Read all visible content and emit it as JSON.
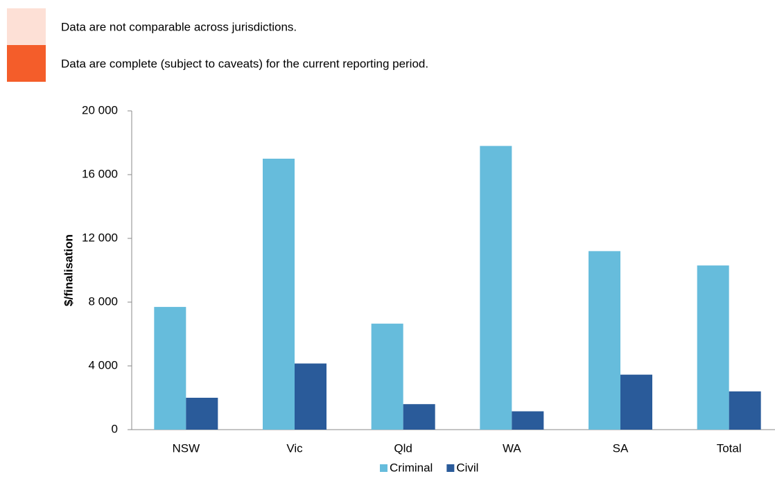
{
  "chart_data": {
    "type": "bar",
    "notes": [
      {
        "text": "Data are not comparable across jurisdictions.",
        "color": "#fde0d6"
      },
      {
        "text": "Data are complete (subject to caveats) for the current reporting period.",
        "color": "#f45d2a"
      }
    ],
    "y_label": "$/finalisation",
    "categories": [
      "NSW",
      "Vic",
      "Qld",
      "WA",
      "SA",
      "Total"
    ],
    "series": [
      {
        "name": "Criminal",
        "color": "#66bcdc",
        "values": [
          7700,
          17000,
          6650,
          17800,
          11200,
          10300
        ]
      },
      {
        "name": "Civil",
        "color": "#2a5b9a",
        "values": [
          2000,
          4150,
          1600,
          1150,
          3450,
          2400
        ]
      }
    ],
    "ylim": [
      0,
      20000
    ],
    "yticks": [
      0,
      {
        "value": 4000,
        "label": "4 000"
      },
      {
        "value": 8000,
        "label": "8 000"
      },
      {
        "value": 12000,
        "label": "12 000"
      },
      {
        "value": 16000,
        "label": "16 000"
      },
      {
        "value": 20000,
        "label": "20 000"
      }
    ],
    "grid": false,
    "legend": "bottom"
  }
}
